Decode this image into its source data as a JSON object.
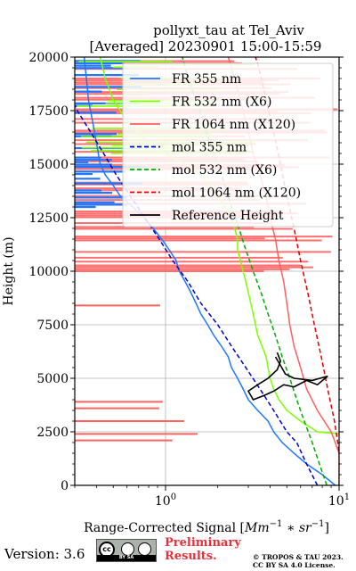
{
  "chart_data": {
    "type": "line",
    "title_line1": "pollyxt_tau at Tel_Aviv",
    "title_line2": "[Averaged] 20230901 15:00-15:59",
    "xlabel": "Range-Corrected Signal [$Mm^{-1}*sr^{-1}$]",
    "xlabel_text": "Range-Corrected Signal [",
    "xlabel_math": "Mm",
    "xlabel_sup1": "−1",
    "xlabel_mid": " ∗ sr",
    "xlabel_sup2": "−1",
    "xlabel_close": "]",
    "ylabel": "Height (m)",
    "xscale": "log",
    "xlim": [
      0.3,
      10
    ],
    "ylim": [
      0,
      20000
    ],
    "xticks": [
      {
        "value": 1,
        "base": "10",
        "exp": "0"
      },
      {
        "value": 10,
        "base": "10",
        "exp": "1"
      }
    ],
    "yticks": [
      0,
      2500,
      5000,
      7500,
      10000,
      12500,
      15000,
      17500,
      20000
    ],
    "grid": true,
    "legend_position": "upper-right",
    "legend": [
      {
        "label": "FR 355 nm",
        "color": "#1f77ff",
        "style": "solid"
      },
      {
        "label": "FR 532 nm (X6)",
        "color": "#80ff00",
        "style": "solid"
      },
      {
        "label": "FR 1064 nm (X120)",
        "color": "#ff6060",
        "style": "solid"
      },
      {
        "label": "mol 355 nm",
        "color": "#0000cc",
        "style": "dashed"
      },
      {
        "label": "mol 532 nm (X6)",
        "color": "#00aa00",
        "style": "dashed"
      },
      {
        "label": "mol 1064 nm (X120)",
        "color": "#dd0000",
        "style": "dashed"
      },
      {
        "label": "Reference Height",
        "color": "#000000",
        "style": "solid"
      }
    ],
    "series": [
      {
        "name": "FR 355 nm",
        "color": "#1f77ff",
        "points": [
          [
            9.5,
            0
          ],
          [
            8.0,
            500
          ],
          [
            6.5,
            1000
          ],
          [
            5.5,
            1500
          ],
          [
            4.7,
            2000
          ],
          [
            4.2,
            2500
          ],
          [
            3.9,
            3000
          ],
          [
            3.4,
            3500
          ],
          [
            3.0,
            4000
          ],
          [
            2.8,
            4500
          ],
          [
            2.6,
            5000
          ],
          [
            2.4,
            5500
          ],
          [
            2.3,
            6000
          ],
          [
            2.1,
            6500
          ],
          [
            1.9,
            7000
          ],
          [
            1.75,
            7500
          ],
          [
            1.6,
            8000
          ],
          [
            1.5,
            8500
          ],
          [
            1.4,
            9000
          ],
          [
            1.3,
            9500
          ],
          [
            1.2,
            10000
          ],
          [
            1.15,
            10500
          ],
          [
            1.05,
            11000
          ],
          [
            0.95,
            11500
          ],
          [
            0.85,
            12000
          ],
          [
            0.75,
            12500
          ],
          [
            0.65,
            13000
          ],
          [
            0.55,
            13500
          ],
          [
            0.5,
            14000
          ],
          [
            0.45,
            14500
          ],
          [
            0.42,
            15000
          ],
          [
            0.4,
            16000
          ],
          [
            0.38,
            17000
          ],
          [
            0.36,
            18000
          ],
          [
            0.35,
            19000
          ],
          [
            0.34,
            20000
          ]
        ]
      },
      {
        "name": "FR 532 nm (X6)",
        "color": "#80ff00",
        "points": [
          [
            10.0,
            2400
          ],
          [
            7.5,
            2500
          ],
          [
            6.0,
            3000
          ],
          [
            5.0,
            3500
          ],
          [
            4.5,
            4000
          ],
          [
            4.2,
            4500
          ],
          [
            4.0,
            5000
          ],
          [
            3.9,
            5500
          ],
          [
            3.8,
            6000
          ],
          [
            3.6,
            6500
          ],
          [
            3.4,
            7000
          ],
          [
            3.3,
            7500
          ],
          [
            3.2,
            8000
          ],
          [
            3.1,
            8500
          ],
          [
            3.0,
            9000
          ],
          [
            2.9,
            9500
          ],
          [
            2.8,
            10000
          ],
          [
            2.7,
            10500
          ],
          [
            2.6,
            11000
          ],
          [
            2.6,
            11500
          ],
          [
            2.5,
            12000
          ],
          [
            2.4,
            12500
          ],
          [
            2.2,
            13000
          ],
          [
            2.0,
            13500
          ],
          [
            1.8,
            14000
          ],
          [
            1.6,
            14500
          ],
          [
            1.3,
            15000
          ],
          [
            1.0,
            15500
          ],
          [
            0.8,
            16000
          ],
          [
            0.6,
            17000
          ],
          [
            0.5,
            18000
          ],
          [
            0.45,
            19000
          ],
          [
            0.42,
            20000
          ]
        ]
      },
      {
        "name": "FR 1064 nm (X120)",
        "color": "#ff6060",
        "points": [
          [
            10.0,
            0
          ],
          [
            10.0,
            1500
          ],
          [
            9.0,
            2500
          ],
          [
            7.5,
            3500
          ],
          [
            6.5,
            4500
          ],
          [
            6.0,
            5500
          ],
          [
            5.5,
            6500
          ],
          [
            5.2,
            7500
          ],
          [
            5.0,
            8500
          ],
          [
            4.8,
            9500
          ],
          [
            4.5,
            10500
          ],
          [
            4.3,
            11500
          ],
          [
            4.0,
            12500
          ],
          [
            3.8,
            13500
          ],
          [
            3.5,
            14500
          ],
          [
            3.2,
            15500
          ],
          [
            3.0,
            16500
          ],
          [
            2.8,
            17500
          ],
          [
            2.6,
            18500
          ],
          [
            2.4,
            19500
          ],
          [
            2.3,
            20000
          ]
        ]
      },
      {
        "name": "mol 355 nm",
        "color": "#0000cc",
        "dashed": true,
        "points": [
          [
            7.5,
            0
          ],
          [
            6.5,
            1000
          ],
          [
            5.7,
            2000
          ],
          [
            5.0,
            2500
          ],
          [
            4.2,
            3500
          ],
          [
            3.5,
            4500
          ],
          [
            2.9,
            5500
          ],
          [
            2.4,
            6500
          ],
          [
            2.0,
            7500
          ],
          [
            1.6,
            8500
          ],
          [
            1.35,
            9500
          ],
          [
            1.1,
            10500
          ],
          [
            0.92,
            11500
          ],
          [
            0.76,
            12500
          ],
          [
            0.63,
            13500
          ],
          [
            0.52,
            14500
          ],
          [
            0.44,
            15500
          ],
          [
            0.37,
            16500
          ],
          [
            0.31,
            17500
          ],
          [
            0.29,
            18000
          ]
        ]
      },
      {
        "name": "mol 532 nm (X6)",
        "color": "#00aa00",
        "dashed": true,
        "points": [
          [
            8.5,
            0
          ],
          [
            7.7,
            1000
          ],
          [
            7.0,
            2000
          ],
          [
            6.3,
            3000
          ],
          [
            5.7,
            4000
          ],
          [
            5.2,
            5000
          ],
          [
            4.7,
            6000
          ],
          [
            4.3,
            7000
          ],
          [
            3.9,
            8000
          ],
          [
            3.55,
            9000
          ],
          [
            3.2,
            10000
          ],
          [
            2.9,
            11000
          ],
          [
            2.65,
            12000
          ],
          [
            2.4,
            13000
          ],
          [
            2.2,
            14000
          ],
          [
            2.0,
            15000
          ],
          [
            1.8,
            16000
          ],
          [
            1.65,
            17000
          ],
          [
            1.5,
            18000
          ],
          [
            1.35,
            19000
          ],
          [
            1.25,
            20000
          ]
        ]
      },
      {
        "name": "mol 1064 nm (X120)",
        "color": "#dd0000",
        "dashed": true,
        "points": [
          [
            10.0,
            1600
          ],
          [
            9.4,
            3000
          ],
          [
            8.6,
            4500
          ],
          [
            7.9,
            6000
          ],
          [
            7.2,
            7500
          ],
          [
            6.6,
            9000
          ],
          [
            6.0,
            10500
          ],
          [
            5.5,
            12000
          ],
          [
            5.0,
            13500
          ],
          [
            4.6,
            15000
          ],
          [
            4.2,
            16500
          ],
          [
            3.8,
            18000
          ],
          [
            3.45,
            19500
          ],
          [
            3.3,
            20000
          ]
        ]
      },
      {
        "name": "Reference Height",
        "color": "#000000",
        "points": [
          [
            4.3,
            6000
          ],
          [
            4.6,
            5600
          ],
          [
            4.9,
            5200
          ],
          [
            5.5,
            5000
          ],
          [
            7.0,
            4900
          ],
          [
            8.6,
            5100
          ],
          [
            7.5,
            4700
          ],
          [
            6.5,
            4900
          ],
          [
            5.5,
            4600
          ],
          [
            4.8,
            4700
          ],
          [
            4.2,
            4400
          ],
          [
            3.7,
            4200
          ],
          [
            3.2,
            4000
          ],
          [
            3.0,
            4400
          ],
          [
            3.4,
            4700
          ],
          [
            3.9,
            5000
          ],
          [
            4.4,
            5400
          ],
          [
            4.6,
            5800
          ],
          [
            4.4,
            6200
          ]
        ]
      }
    ]
  },
  "footer": {
    "version": "Version: 3.6",
    "license_badge": "BY SA",
    "license_cc": "cc",
    "preliminary_line1": "Preliminary",
    "preliminary_line2": "Results.",
    "copyright_line1": "© TROPOS & TAU 2023.",
    "copyright_line2": "CC BY SA 4.0 License."
  }
}
